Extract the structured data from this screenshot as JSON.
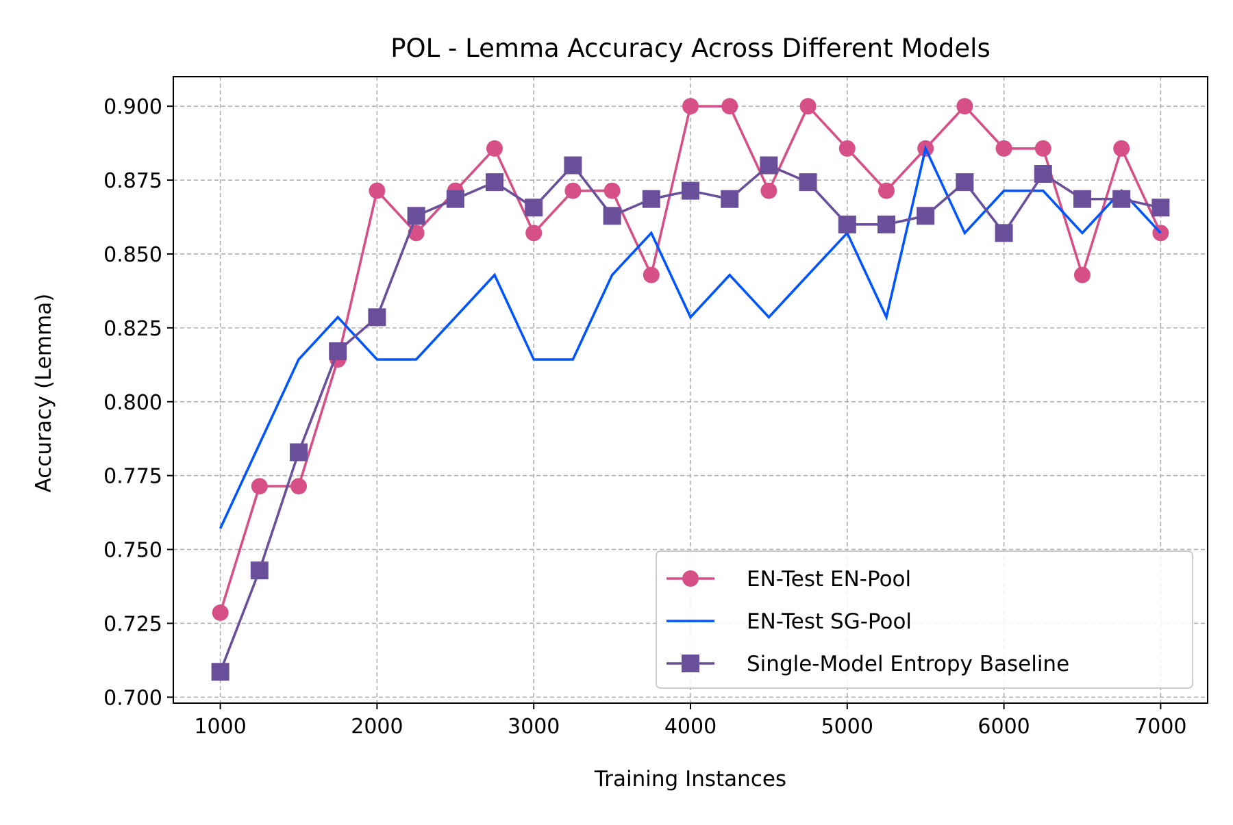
{
  "chart_data": {
    "type": "line",
    "title": "POL - Lemma Accuracy Across Different Models",
    "xlabel": "Training Instances",
    "ylabel": "Accuracy (Lemma)",
    "xlim": [
      700,
      7300
    ],
    "ylim": [
      0.698,
      0.91
    ],
    "xticks": [
      1000,
      2000,
      3000,
      4000,
      5000,
      6000,
      7000
    ],
    "yticks": [
      0.7,
      0.725,
      0.75,
      0.775,
      0.8,
      0.825,
      0.85,
      0.875,
      0.9
    ],
    "grid": true,
    "legend_position": "lower-right",
    "x": [
      1000,
      1250,
      1500,
      1750,
      2000,
      2250,
      2500,
      2750,
      3000,
      3250,
      3500,
      3750,
      4000,
      4250,
      4500,
      4750,
      5000,
      5250,
      5500,
      5750,
      6000,
      6250,
      6500,
      6750,
      7000
    ],
    "series": [
      {
        "name": "EN-Test EN-Pool",
        "color": "#d64f86",
        "marker": "circle",
        "values": [
          0.7286,
          0.7714,
          0.7714,
          0.8143,
          0.8714,
          0.8571,
          0.8714,
          0.8857,
          0.8571,
          0.8714,
          0.8714,
          0.8429,
          0.9,
          0.9,
          0.8714,
          0.9,
          0.8857,
          0.8714,
          0.8857,
          0.9,
          0.8857,
          0.8857,
          0.8429,
          0.8857,
          0.8571
        ]
      },
      {
        "name": "EN-Test SG-Pool",
        "color": "#0055ff",
        "marker": "none",
        "values": [
          0.7571,
          0.7857,
          0.8143,
          0.8286,
          0.8143,
          0.8143,
          0.8286,
          0.8429,
          0.8143,
          0.8143,
          0.8429,
          0.8571,
          0.8286,
          0.8429,
          0.8286,
          0.8429,
          0.8571,
          0.8286,
          0.8857,
          0.8571,
          0.8714,
          0.8714,
          0.8571,
          0.8714,
          0.8571
        ]
      },
      {
        "name": "Single-Model Entropy Baseline",
        "color": "#6a4f9a",
        "marker": "square",
        "values": [
          0.7086,
          0.7429,
          0.7829,
          0.8171,
          0.8286,
          0.8629,
          0.8686,
          0.8743,
          0.8657,
          0.88,
          0.8629,
          0.8686,
          0.8714,
          0.8686,
          0.88,
          0.8743,
          0.86,
          0.86,
          0.8629,
          0.8743,
          0.8571,
          0.8771,
          0.8686,
          0.8686,
          0.8657
        ]
      }
    ]
  }
}
